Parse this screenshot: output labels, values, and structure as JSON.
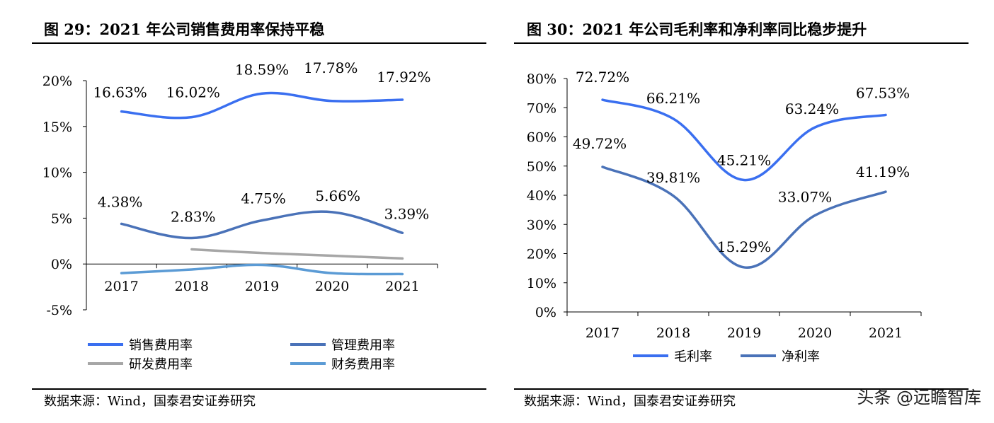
{
  "left": {
    "title": "图 29：2021 年公司销售费用率保持平稳",
    "source": "数据来源：Wind，国泰君安证券研究"
  },
  "right": {
    "title": "图 30：2021 年公司毛利率和净利率同比稳步提升",
    "source": "数据来源：Wind，国泰君安证券研究"
  },
  "watermark": "头条 @远瞻智库",
  "chart_data": [
    {
      "type": "line",
      "categories": [
        "2017",
        "2018",
        "2019",
        "2020",
        "2021"
      ],
      "y_ticks": [
        "20%",
        "15%",
        "10%",
        "5%",
        "0%",
        "-5%"
      ],
      "ylim": [
        -5,
        20
      ],
      "legend_placement": "bottom",
      "series": [
        {
          "name": "销售费用率",
          "values": [
            16.63,
            16.02,
            18.59,
            17.78,
            17.92
          ],
          "labels": [
            "16.63%",
            "16.02%",
            "18.59%",
            "17.78%",
            "17.92%"
          ],
          "color": "#3a6ff0"
        },
        {
          "name": "管理费用率",
          "values": [
            4.38,
            2.83,
            4.75,
            5.66,
            3.39
          ],
          "labels": [
            "4.38%",
            "2.83%",
            "4.75%",
            "5.66%",
            "3.39%"
          ],
          "color": "#4a72b8"
        },
        {
          "name": "研发费用率",
          "values": [
            null,
            1.6,
            1.2,
            0.9,
            0.6
          ],
          "labels": [],
          "color": "#a6a6a6"
        },
        {
          "name": "财务费用率",
          "values": [
            -1.0,
            -0.6,
            -0.1,
            -1.0,
            -1.1
          ],
          "labels": [],
          "color": "#5b9bd5"
        }
      ]
    },
    {
      "type": "line",
      "categories": [
        "2017",
        "2018",
        "2019",
        "2020",
        "2021"
      ],
      "y_ticks": [
        "80%",
        "70%",
        "60%",
        "50%",
        "40%",
        "30%",
        "20%",
        "10%",
        "0%"
      ],
      "ylim": [
        0,
        80
      ],
      "legend_placement": "bottom",
      "series": [
        {
          "name": "毛利率",
          "values": [
            72.72,
            66.21,
            45.21,
            63.24,
            67.53
          ],
          "labels": [
            "72.72%",
            "66.21%",
            "45.21%",
            "63.24%",
            "67.53%"
          ],
          "color": "#3a6ff0"
        },
        {
          "name": "净利率",
          "values": [
            49.72,
            39.81,
            15.29,
            33.07,
            41.19
          ],
          "labels": [
            "49.72%",
            "39.81%",
            "15.29%",
            "33.07%",
            "41.19%"
          ],
          "color": "#4a72b8"
        }
      ]
    }
  ]
}
